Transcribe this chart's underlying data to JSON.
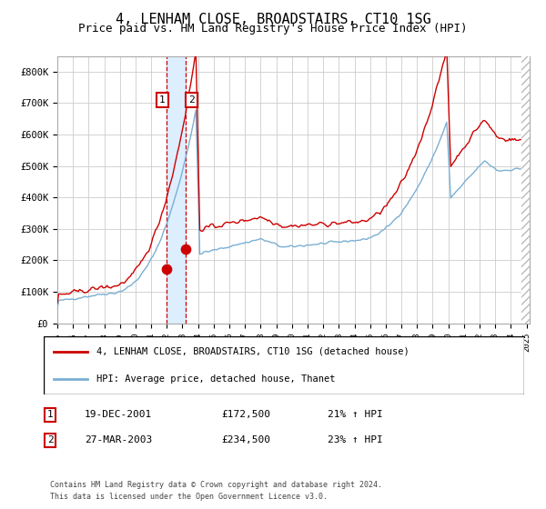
{
  "title": "4, LENHAM CLOSE, BROADSTAIRS, CT10 1SG",
  "subtitle": "Price paid vs. HM Land Registry's House Price Index (HPI)",
  "title_fontsize": 11,
  "subtitle_fontsize": 9,
  "ylim": [
    0,
    850000
  ],
  "yticks": [
    0,
    100000,
    200000,
    300000,
    400000,
    500000,
    600000,
    700000,
    800000
  ],
  "ytick_labels": [
    "£0",
    "£100K",
    "£200K",
    "£300K",
    "£400K",
    "£500K",
    "£600K",
    "£700K",
    "£800K"
  ],
  "transaction1_year": 2001.96,
  "transaction1_price": 172500,
  "transaction2_year": 2003.23,
  "transaction2_price": 234500,
  "hpi_line_color": "#7bafd4",
  "price_line_color": "#cc0000",
  "point_color": "#cc0000",
  "shaded_color": "#ddeeff",
  "dashed_color": "#cc0000",
  "grid_color": "#cccccc",
  "bg_color": "#ffffff",
  "legend_line1": "4, LENHAM CLOSE, BROADSTAIRS, CT10 1SG (detached house)",
  "legend_line2": "HPI: Average price, detached house, Thanet",
  "row1_date": "19-DEC-2001",
  "row1_price": "£172,500",
  "row1_hpi": "21% ↑ HPI",
  "row2_date": "27-MAR-2003",
  "row2_price": "£234,500",
  "row2_hpi": "23% ↑ HPI",
  "footer": "Contains HM Land Registry data © Crown copyright and database right 2024.\nThis data is licensed under the Open Government Licence v3.0."
}
